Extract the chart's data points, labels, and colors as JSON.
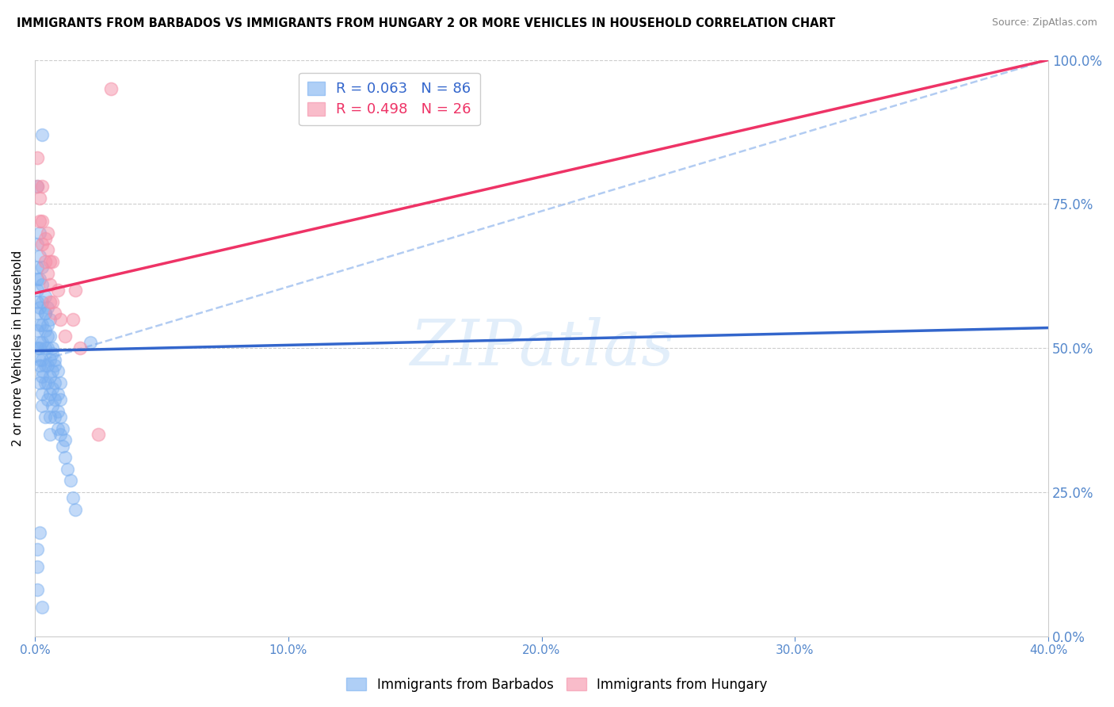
{
  "title": "IMMIGRANTS FROM BARBADOS VS IMMIGRANTS FROM HUNGARY 2 OR MORE VEHICLES IN HOUSEHOLD CORRELATION CHART",
  "source": "Source: ZipAtlas.com",
  "ylabel": "2 or more Vehicles in Household",
  "xlim": [
    0.0,
    0.4
  ],
  "ylim": [
    0.0,
    1.0
  ],
  "xticks": [
    0.0,
    0.1,
    0.2,
    0.3,
    0.4
  ],
  "xtick_labels": [
    "0.0%",
    "10.0%",
    "20.0%",
    "30.0%",
    "40.0%"
  ],
  "yticks_right": [
    0.0,
    0.25,
    0.5,
    0.75,
    1.0
  ],
  "ytick_labels_right": [
    "0.0%",
    "25.0%",
    "50.0%",
    "75.0%",
    "100.0%"
  ],
  "barbados_R": 0.063,
  "barbados_N": 86,
  "hungary_R": 0.498,
  "hungary_N": 26,
  "barbados_color": "#7aaff0",
  "hungary_color": "#f590a8",
  "trend_blue_color": "#3366cc",
  "trend_pink_color": "#ee3366",
  "dash_color": "#99bbee",
  "legend_label_blue": "Immigrants from Barbados",
  "legend_label_pink": "Immigrants from Hungary",
  "watermark_text": "ZIPatlas",
  "blue_line_x": [
    0.0,
    0.4
  ],
  "blue_line_y": [
    0.495,
    0.535
  ],
  "pink_line_x": [
    0.0,
    0.4
  ],
  "pink_line_y": [
    0.595,
    1.0
  ],
  "dash_line_x": [
    0.0,
    0.4
  ],
  "dash_line_y": [
    0.475,
    1.0
  ],
  "barbados_x": [
    0.001,
    0.001,
    0.001,
    0.001,
    0.001,
    0.001,
    0.002,
    0.002,
    0.002,
    0.002,
    0.002,
    0.002,
    0.002,
    0.003,
    0.003,
    0.003,
    0.003,
    0.003,
    0.003,
    0.003,
    0.004,
    0.004,
    0.004,
    0.004,
    0.004,
    0.004,
    0.005,
    0.005,
    0.005,
    0.005,
    0.005,
    0.006,
    0.006,
    0.006,
    0.006,
    0.006,
    0.007,
    0.007,
    0.007,
    0.007,
    0.008,
    0.008,
    0.008,
    0.008,
    0.009,
    0.009,
    0.009,
    0.01,
    0.01,
    0.01,
    0.011,
    0.011,
    0.012,
    0.012,
    0.013,
    0.014,
    0.015,
    0.016,
    0.001,
    0.001,
    0.002,
    0.002,
    0.002,
    0.003,
    0.003,
    0.003,
    0.004,
    0.004,
    0.005,
    0.005,
    0.006,
    0.006,
    0.007,
    0.008,
    0.009,
    0.01,
    0.003,
    0.022,
    0.001,
    0.001,
    0.003,
    0.002,
    0.001,
    0.001
  ],
  "barbados_y": [
    0.5,
    0.53,
    0.56,
    0.6,
    0.58,
    0.62,
    0.48,
    0.51,
    0.54,
    0.57,
    0.44,
    0.47,
    0.5,
    0.45,
    0.48,
    0.51,
    0.54,
    0.42,
    0.46,
    0.4,
    0.44,
    0.47,
    0.5,
    0.53,
    0.56,
    0.38,
    0.41,
    0.44,
    0.47,
    0.5,
    0.52,
    0.42,
    0.45,
    0.48,
    0.35,
    0.38,
    0.4,
    0.43,
    0.46,
    0.49,
    0.38,
    0.41,
    0.44,
    0.47,
    0.36,
    0.39,
    0.42,
    0.35,
    0.38,
    0.41,
    0.33,
    0.36,
    0.31,
    0.34,
    0.29,
    0.27,
    0.24,
    0.22,
    0.64,
    0.68,
    0.62,
    0.66,
    0.7,
    0.58,
    0.61,
    0.64,
    0.56,
    0.59,
    0.54,
    0.57,
    0.52,
    0.55,
    0.5,
    0.48,
    0.46,
    0.44,
    0.87,
    0.51,
    0.15,
    0.08,
    0.05,
    0.18,
    0.12,
    0.78
  ],
  "hungary_x": [
    0.001,
    0.002,
    0.002,
    0.003,
    0.003,
    0.004,
    0.004,
    0.005,
    0.005,
    0.006,
    0.006,
    0.007,
    0.008,
    0.009,
    0.01,
    0.012,
    0.015,
    0.016,
    0.018,
    0.025,
    0.001,
    0.003,
    0.005,
    0.007,
    0.03,
    0.006
  ],
  "hungary_y": [
    0.78,
    0.72,
    0.76,
    0.68,
    0.72,
    0.65,
    0.69,
    0.63,
    0.67,
    0.61,
    0.65,
    0.58,
    0.56,
    0.6,
    0.55,
    0.52,
    0.55,
    0.6,
    0.5,
    0.35,
    0.83,
    0.78,
    0.7,
    0.65,
    0.95,
    0.58
  ]
}
